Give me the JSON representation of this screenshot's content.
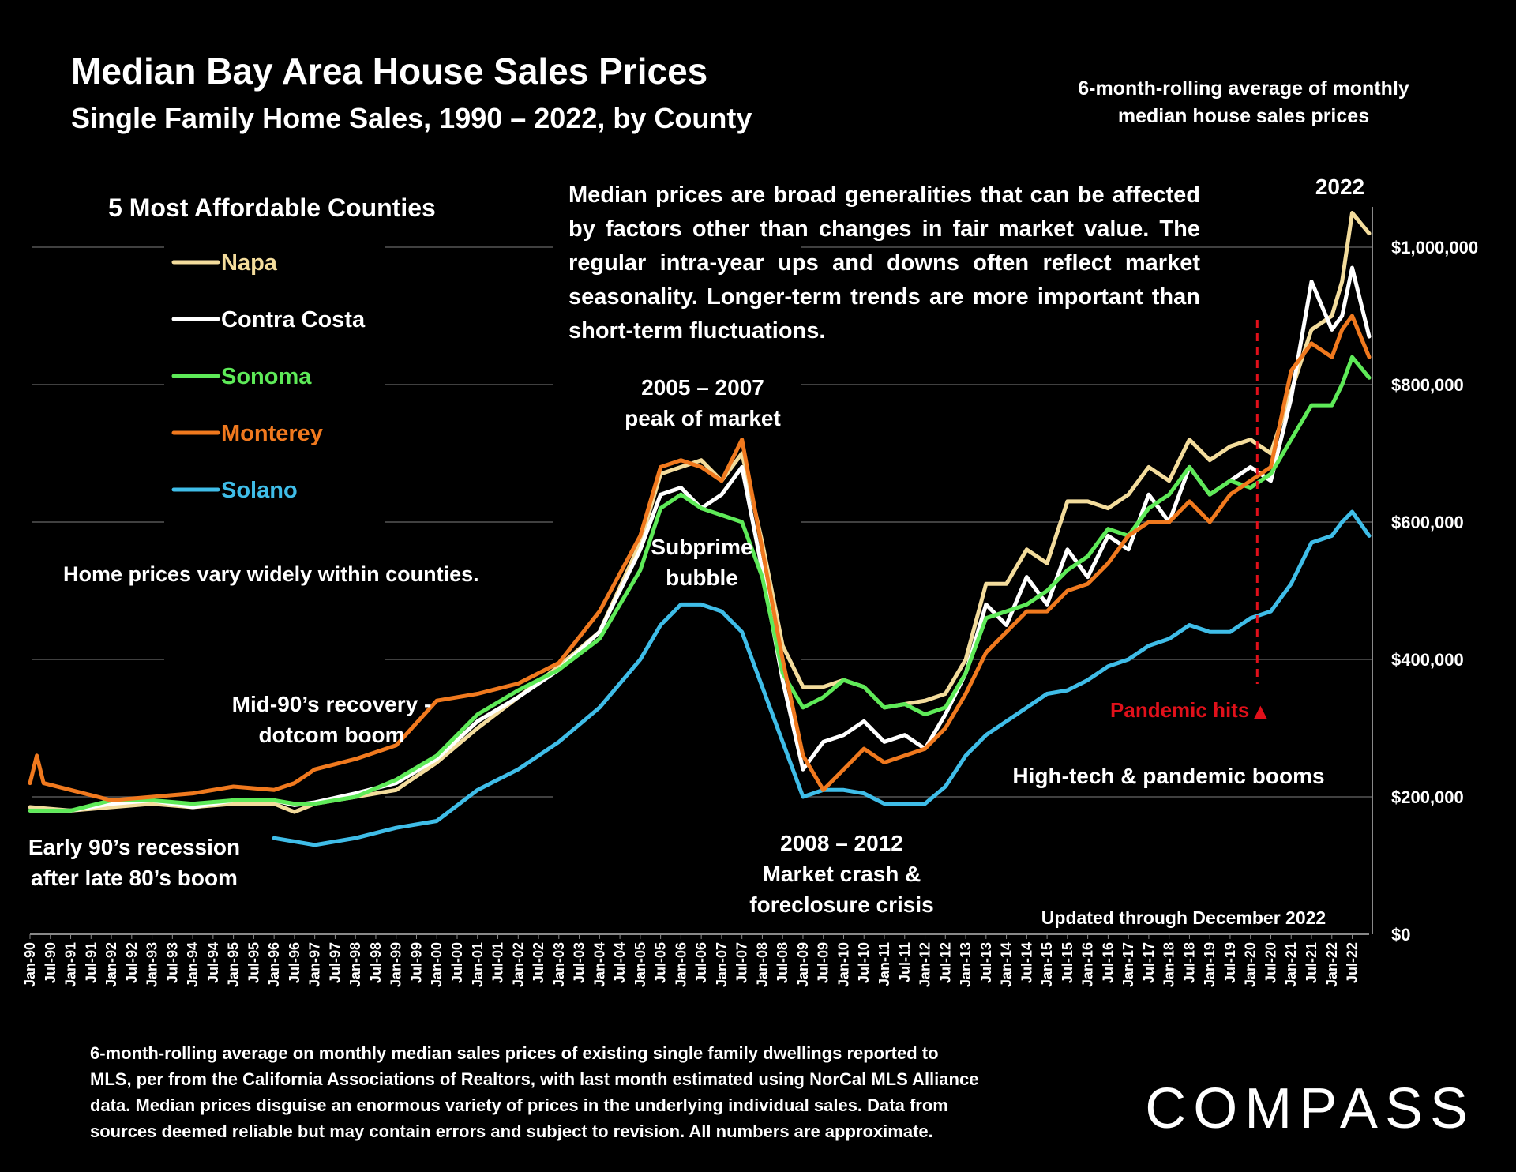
{
  "header": {
    "title": "Median Bay Area House Sales Prices",
    "subtitle": "Single Family Home Sales, 1990 – 2022, by County",
    "method_note_line1": "6-month-rolling average of monthly",
    "method_note_line2": "median house sales prices"
  },
  "legend": {
    "title": "5 Most Affordable Counties"
  },
  "disclaimer": "Median prices are broad generalities that can be affected by factors other than changes in fair market value. The regular intra-year ups and downs often reflect market seasonality. Longer-term trends are more important than short-term fluctuations.",
  "annotations": {
    "within_counties": "Home prices vary widely within counties.",
    "early90s_l1": "Early 90’s recession",
    "early90s_l2": "after late 80’s boom",
    "mid90s_l1": "Mid-90’s recovery -",
    "mid90s_l2": "dotcom boom",
    "peak_l1": "2005 – 2007",
    "peak_l2": "peak of market",
    "subprime_l1": "Subprime",
    "subprime_l2": "bubble",
    "crash_l1": "2008 – 2012",
    "crash_l2": "Market crash &",
    "crash_l3": "foreclosure crisis",
    "hightech": "High-tech & pandemic booms",
    "pandemic": "Pandemic hits",
    "pandemic_marker": "▲",
    "year2022": "2022",
    "updated": "Updated through December 2022"
  },
  "footnote": [
    "6-month-rolling average on monthly median sales prices of existing single family dwellings reported to",
    "MLS, per from the California Associations of Realtors, with last month estimated using NorCal MLS Alliance",
    "data. Median prices disguise an enormous variety of prices in the underlying individual sales. Data from",
    "sources deemed reliable but may contain errors and subject to revision. All numbers are approximate."
  ],
  "brand": "COMPASS",
  "colors": {
    "background": "#000000",
    "pandemic": "#e0101a",
    "Napa": "#f3dc9c",
    "Contra Costa": "#ffffff",
    "Sonoma": "#5eea58",
    "Monterey": "#f0791e",
    "Solano": "#3fbde8"
  },
  "chart_data": {
    "type": "line",
    "x_range": [
      "Jan-90",
      "Dec-22"
    ],
    "ylim": [
      0,
      1100000
    ],
    "y_ticks": [
      0,
      200000,
      400000,
      600000,
      800000,
      1000000
    ],
    "y_tick_labels": [
      "$0",
      "$200,000",
      "$400,000",
      "$600,000",
      "$800,000",
      "$1,000,000"
    ],
    "x_tick_labels": [
      "Jan-90",
      "Jul-90",
      "Jan-91",
      "Jul-91",
      "Jan-92",
      "Jul-92",
      "Jan-93",
      "Jul-93",
      "Jan-94",
      "Jul-94",
      "Jan-95",
      "Jul-95",
      "Jan-96",
      "Jul-96",
      "Jan-97",
      "Jul-97",
      "Jan-98",
      "Jul-98",
      "Jan-99",
      "Jul-99",
      "Jan-00",
      "Jul-00",
      "Jan-01",
      "Jul-01",
      "Jan-02",
      "Jul-02",
      "Jan-03",
      "Jul-03",
      "Jan-04",
      "Jul-04",
      "Jan-05",
      "Jul-05",
      "Jan-06",
      "Jul-06",
      "Jan-07",
      "Jul-07",
      "Jan-08",
      "Jul-08",
      "Jan-09",
      "Jul-09",
      "Jan-10",
      "Jul-10",
      "Jan-11",
      "Jul-11",
      "Jan-12",
      "Jul-12",
      "Jan-13",
      "Jul-13",
      "Jan-14",
      "Jul-14",
      "Jan-15",
      "Jul-15",
      "Jan-16",
      "Jul-16",
      "Jan-17",
      "Jul-17",
      "Jan-18",
      "Jul-18",
      "Jan-19",
      "Jul-19",
      "Jan-20",
      "Jul-20",
      "Jan-21",
      "Jul-21",
      "Jan-22",
      "Jul-22"
    ],
    "grid": true,
    "legend_position": "left",
    "pandemic_marker_x": "Mar-20",
    "series": [
      {
        "name": "Napa",
        "x": [
          "Jan-90",
          "Jan-91",
          "Jan-92",
          "Jan-93",
          "Jan-94",
          "Jan-95",
          "Jan-96",
          "Jul-96",
          "Jan-97",
          "Jan-98",
          "Jan-99",
          "Jan-00",
          "Jan-01",
          "Jan-02",
          "Jan-03",
          "Jan-04",
          "Jan-05",
          "Jul-05",
          "Jan-06",
          "Jul-06",
          "Jan-07",
          "Jul-07",
          "Jan-08",
          "Jul-08",
          "Jan-09",
          "Jul-09",
          "Jan-10",
          "Jul-10",
          "Jan-11",
          "Jul-11",
          "Jan-12",
          "Jul-12",
          "Jan-13",
          "Jul-13",
          "Jan-14",
          "Jul-14",
          "Jan-15",
          "Jul-15",
          "Jan-16",
          "Jul-16",
          "Jan-17",
          "Jul-17",
          "Jan-18",
          "Jul-18",
          "Jan-19",
          "Jul-19",
          "Jan-20",
          "Jul-20",
          "Jan-21",
          "Jul-21",
          "Jan-22",
          "Apr-22",
          "Jul-22",
          "Dec-22"
        ],
        "values": [
          185000,
          180000,
          185000,
          190000,
          185000,
          190000,
          190000,
          178000,
          190000,
          200000,
          210000,
          250000,
          300000,
          345000,
          390000,
          440000,
          570000,
          670000,
          680000,
          690000,
          660000,
          700000,
          570000,
          420000,
          360000,
          360000,
          370000,
          360000,
          330000,
          335000,
          340000,
          350000,
          400000,
          510000,
          510000,
          560000,
          540000,
          630000,
          630000,
          620000,
          640000,
          680000,
          660000,
          720000,
          690000,
          710000,
          720000,
          700000,
          790000,
          880000,
          900000,
          950000,
          1050000,
          1020000
        ]
      },
      {
        "name": "Contra Costa",
        "x": [
          "Jan-90",
          "Jan-91",
          "Jan-92",
          "Jan-93",
          "Jan-94",
          "Jan-95",
          "Jan-96",
          "Jul-96",
          "Jan-97",
          "Jan-98",
          "Jan-99",
          "Jan-00",
          "Jan-01",
          "Jan-02",
          "Jan-03",
          "Jan-04",
          "Jan-05",
          "Jul-05",
          "Jan-06",
          "Jul-06",
          "Jan-07",
          "Jul-07",
          "Jan-08",
          "Jul-08",
          "Jan-09",
          "Jul-09",
          "Jan-10",
          "Jul-10",
          "Jan-11",
          "Jul-11",
          "Jan-12",
          "Jul-12",
          "Jan-13",
          "Jul-13",
          "Jan-14",
          "Jul-14",
          "Jan-15",
          "Jul-15",
          "Jan-16",
          "Jul-16",
          "Jan-17",
          "Jul-17",
          "Jan-18",
          "Jul-18",
          "Jan-19",
          "Jul-19",
          "Jan-20",
          "Jul-20",
          "Jan-21",
          "Jul-21",
          "Jan-22",
          "Apr-22",
          "Jul-22",
          "Dec-22"
        ],
        "values": [
          180000,
          180000,
          190000,
          195000,
          185000,
          195000,
          195000,
          188000,
          192000,
          205000,
          220000,
          255000,
          310000,
          345000,
          385000,
          440000,
          560000,
          640000,
          650000,
          620000,
          640000,
          680000,
          530000,
          370000,
          240000,
          280000,
          290000,
          310000,
          280000,
          290000,
          270000,
          320000,
          380000,
          480000,
          450000,
          520000,
          480000,
          560000,
          520000,
          580000,
          560000,
          640000,
          600000,
          680000,
          640000,
          660000,
          680000,
          660000,
          780000,
          950000,
          880000,
          900000,
          970000,
          870000
        ]
      },
      {
        "name": "Sonoma",
        "x": [
          "Jan-90",
          "Jan-91",
          "Jan-92",
          "Jan-93",
          "Jan-94",
          "Jan-95",
          "Jan-96",
          "Jul-96",
          "Jan-97",
          "Jan-98",
          "Jan-99",
          "Jan-00",
          "Jan-01",
          "Jan-02",
          "Jan-03",
          "Jan-04",
          "Jan-05",
          "Jul-05",
          "Jan-06",
          "Jul-06",
          "Jan-07",
          "Jul-07",
          "Jan-08",
          "Jul-08",
          "Jan-09",
          "Jul-09",
          "Jan-10",
          "Jul-10",
          "Jan-11",
          "Jul-11",
          "Jan-12",
          "Jul-12",
          "Jan-13",
          "Jul-13",
          "Jan-14",
          "Jul-14",
          "Jan-15",
          "Jul-15",
          "Jan-16",
          "Jul-16",
          "Jan-17",
          "Jul-17",
          "Jan-18",
          "Jul-18",
          "Jan-19",
          "Jul-19",
          "Jan-20",
          "Jul-20",
          "Jan-21",
          "Jul-21",
          "Jan-22",
          "Apr-22",
          "Jul-22",
          "Dec-22"
        ],
        "values": [
          180000,
          180000,
          195000,
          195000,
          190000,
          195000,
          195000,
          190000,
          190000,
          200000,
          225000,
          260000,
          320000,
          355000,
          385000,
          430000,
          530000,
          620000,
          640000,
          620000,
          610000,
          600000,
          520000,
          380000,
          330000,
          345000,
          370000,
          360000,
          330000,
          335000,
          320000,
          330000,
          380000,
          460000,
          470000,
          480000,
          500000,
          530000,
          550000,
          590000,
          580000,
          620000,
          640000,
          680000,
          640000,
          660000,
          650000,
          670000,
          720000,
          770000,
          770000,
          800000,
          840000,
          810000
        ]
      },
      {
        "name": "Monterey",
        "x": [
          "Jan-90",
          "Mar-90",
          "May-90",
          "Jan-91",
          "Jan-92",
          "Jan-93",
          "Jan-94",
          "Jan-95",
          "Jan-96",
          "Jul-96",
          "Jan-97",
          "Jan-98",
          "Jan-99",
          "Jan-00",
          "Jan-01",
          "Jan-02",
          "Jan-03",
          "Jan-04",
          "Jan-05",
          "Jul-05",
          "Jan-06",
          "Jul-06",
          "Jan-07",
          "Jul-07",
          "Jan-08",
          "Jul-08",
          "Jan-09",
          "Jul-09",
          "Jan-10",
          "Jul-10",
          "Jan-11",
          "Jul-11",
          "Jan-12",
          "Jul-12",
          "Jan-13",
          "Jul-13",
          "Jan-14",
          "Jul-14",
          "Jan-15",
          "Jul-15",
          "Jan-16",
          "Jul-16",
          "Jan-17",
          "Jul-17",
          "Jan-18",
          "Jul-18",
          "Jan-19",
          "Jul-19",
          "Jan-20",
          "Jul-20",
          "Jan-21",
          "Jul-21",
          "Jan-22",
          "Apr-22",
          "Jul-22",
          "Dec-22"
        ],
        "values": [
          220000,
          260000,
          220000,
          210000,
          195000,
          200000,
          205000,
          215000,
          210000,
          220000,
          240000,
          255000,
          275000,
          340000,
          350000,
          365000,
          395000,
          470000,
          580000,
          680000,
          690000,
          680000,
          660000,
          720000,
          560000,
          400000,
          260000,
          210000,
          240000,
          270000,
          250000,
          260000,
          270000,
          300000,
          350000,
          410000,
          440000,
          470000,
          470000,
          500000,
          510000,
          540000,
          580000,
          600000,
          600000,
          630000,
          600000,
          640000,
          660000,
          680000,
          820000,
          860000,
          840000,
          880000,
          900000,
          840000
        ]
      },
      {
        "name": "Solano",
        "x": [
          "Jan-96",
          "Jul-96",
          "Jan-97",
          "Jan-98",
          "Jan-99",
          "Jan-00",
          "Jan-01",
          "Jan-02",
          "Jan-03",
          "Jan-04",
          "Jan-05",
          "Jul-05",
          "Jan-06",
          "Jul-06",
          "Jan-07",
          "Jul-07",
          "Jan-08",
          "Jul-08",
          "Jan-09",
          "Jul-09",
          "Jan-10",
          "Jul-10",
          "Jan-11",
          "Jul-11",
          "Jan-12",
          "Jul-12",
          "Jan-13",
          "Jul-13",
          "Jan-14",
          "Jul-14",
          "Jan-15",
          "Jul-15",
          "Jan-16",
          "Jul-16",
          "Jan-17",
          "Jul-17",
          "Jan-18",
          "Jul-18",
          "Jan-19",
          "Jul-19",
          "Jan-20",
          "Jul-20",
          "Jan-21",
          "Jul-21",
          "Jan-22",
          "Apr-22",
          "Jul-22",
          "Dec-22"
        ],
        "values": [
          140000,
          135000,
          130000,
          140000,
          155000,
          165000,
          210000,
          240000,
          280000,
          330000,
          400000,
          450000,
          480000,
          480000,
          470000,
          440000,
          360000,
          280000,
          200000,
          210000,
          210000,
          205000,
          190000,
          190000,
          190000,
          215000,
          260000,
          290000,
          310000,
          330000,
          350000,
          355000,
          370000,
          390000,
          400000,
          420000,
          430000,
          450000,
          440000,
          440000,
          460000,
          470000,
          510000,
          570000,
          580000,
          600000,
          615000,
          580000
        ]
      }
    ]
  }
}
